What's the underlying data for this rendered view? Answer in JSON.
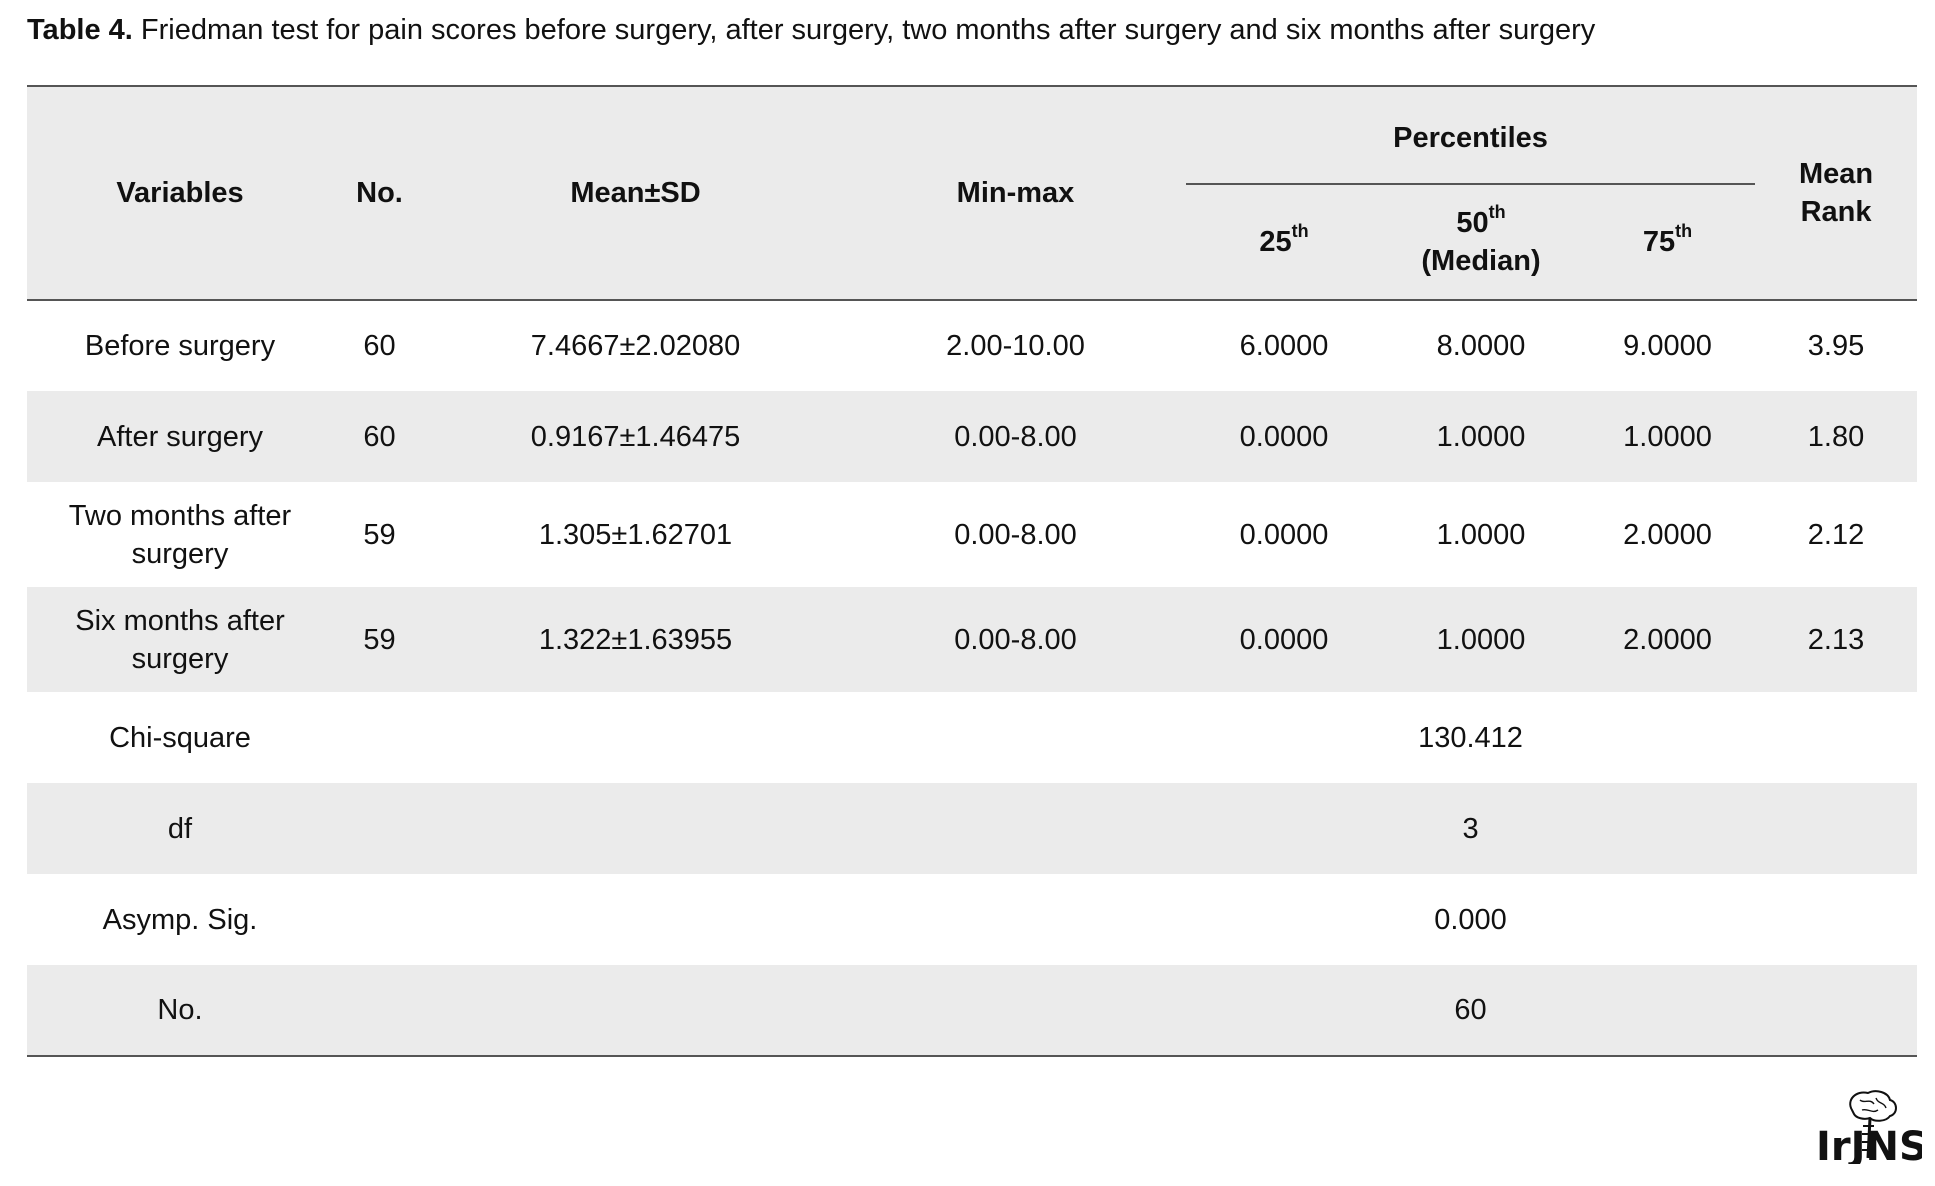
{
  "caption": {
    "lead": "Table 4.",
    "text": " Friedman test for pain scores before surgery, after surgery, two months after surgery and six months after surgery"
  },
  "table": {
    "headers": {
      "variables": "Variables",
      "no": "No.",
      "mean_sd": "Mean±SD",
      "min_max": "Min-max",
      "percentiles": "Percentiles",
      "p25": "25",
      "p25_sup": "th",
      "p50": "50",
      "p50_sup": "th",
      "p50_sub": "(Median)",
      "p75": "75",
      "p75_sup": "th",
      "mean_rank_1": "Mean",
      "mean_rank_2": "Rank"
    },
    "rows": [
      {
        "variable": "Before surgery",
        "variable_2": "",
        "no": "60",
        "mean_sd": "7.4667±2.02080",
        "min_max": "2.00-10.00",
        "p25": "6.0000",
        "p50": "8.0000",
        "p75": "9.0000",
        "mean_rank": "3.95"
      },
      {
        "variable": "After surgery",
        "variable_2": "",
        "no": "60",
        "mean_sd": "0.9167±1.46475",
        "min_max": "0.00-8.00",
        "p25": "0.0000",
        "p50": "1.0000",
        "p75": "1.0000",
        "mean_rank": "1.80"
      },
      {
        "variable": "Two months after",
        "variable_2": "surgery",
        "no": "59",
        "mean_sd": "1.305±1.62701",
        "min_max": "0.00-8.00",
        "p25": "0.0000",
        "p50": "1.0000",
        "p75": "2.0000",
        "mean_rank": "2.12"
      },
      {
        "variable": "Six months after",
        "variable_2": "surgery",
        "no": "59",
        "mean_sd": "1.322±1.63955",
        "min_max": "0.00-8.00",
        "p25": "0.0000",
        "p50": "1.0000",
        "p75": "2.0000",
        "mean_rank": "2.13"
      }
    ],
    "stats": [
      {
        "label": "Chi-square",
        "value": "130.412"
      },
      {
        "label": "df",
        "value": "3"
      },
      {
        "label": "Asymp. Sig.",
        "value": "0.000"
      },
      {
        "label": "No.",
        "value": "60"
      }
    ]
  },
  "logo": {
    "text": "IrJNS",
    "icon": "brain-logo-icon"
  }
}
